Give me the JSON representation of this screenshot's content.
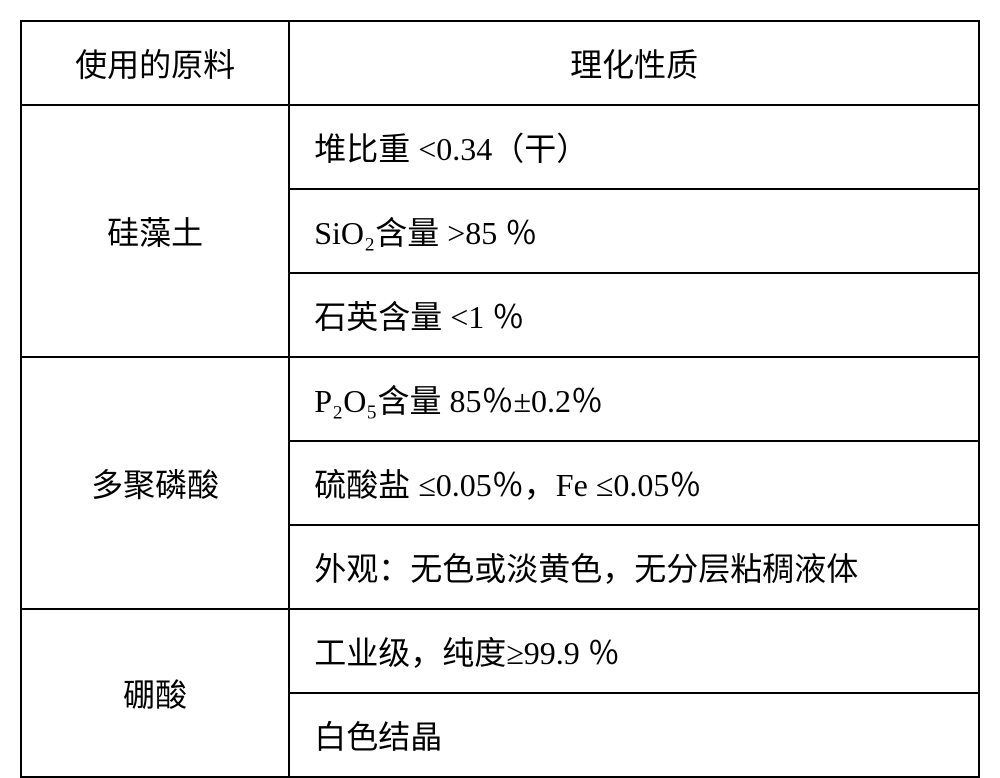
{
  "table": {
    "border_color": "#000000",
    "border_width": 2,
    "background_color": "#ffffff",
    "font_family": "SimSun",
    "header_fontsize": 32,
    "cell_fontsize": 32,
    "columns": [
      {
        "key": "material",
        "label": "使用的原料",
        "width_pct": 28,
        "align": "center"
      },
      {
        "key": "property",
        "label": "理化性质",
        "width_pct": 72,
        "align": "left"
      }
    ],
    "groups": [
      {
        "material": "硅藻土",
        "rows": [
          "堆比重 <0.34（干）",
          "SiO₂含量 >85 ％",
          "石英含量 <1 ％"
        ]
      },
      {
        "material": "多聚磷酸",
        "rows": [
          "P₂O₅含量 85％±0.2％",
          "硫酸盐 ≤0.05％，Fe ≤0.05％",
          "外观：无色或淡黄色，无分层粘稠液体"
        ]
      },
      {
        "material": "硼酸",
        "rows": [
          "工业级，纯度≥99.9 ％",
          "白色结晶"
        ]
      }
    ]
  }
}
